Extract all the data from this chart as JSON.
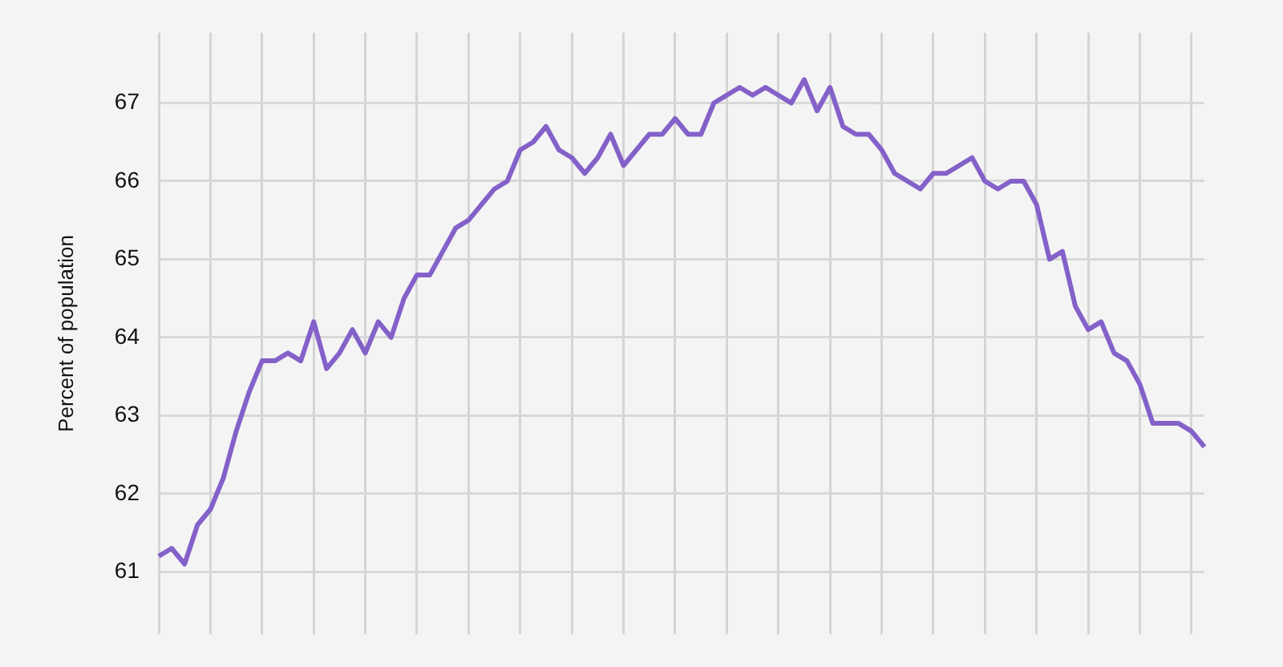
{
  "chart_data": {
    "type": "line",
    "ylabel": "Percent of population",
    "categories": [
      null,
      null,
      null,
      null,
      null,
      null,
      null,
      null,
      null,
      null,
      null,
      null,
      null,
      null,
      null,
      null,
      null,
      null,
      null,
      null,
      null,
      null,
      null,
      null,
      null,
      null,
      null,
      null,
      null,
      null,
      null,
      null,
      null,
      null,
      null,
      null,
      null,
      null,
      null,
      null,
      null,
      null,
      null,
      null,
      null,
      null,
      null,
      null,
      null,
      null,
      null,
      null,
      null,
      null,
      null,
      null,
      null,
      null,
      null,
      null,
      null,
      null,
      null,
      null,
      null,
      null,
      null,
      null,
      null,
      null,
      null,
      null,
      null,
      null,
      null,
      null,
      null,
      null,
      null,
      null,
      null,
      null
    ],
    "series": [
      {
        "color": "#8461c9",
        "values": [
          61.2,
          61.3,
          61.1,
          61.6,
          61.8,
          62.2,
          62.8,
          63.3,
          63.7,
          63.7,
          63.8,
          63.7,
          64.2,
          63.6,
          63.8,
          64.1,
          63.8,
          64.2,
          64.0,
          64.5,
          64.8,
          64.8,
          65.1,
          65.4,
          65.5,
          65.7,
          65.9,
          66.0,
          66.4,
          66.5,
          66.7,
          66.4,
          66.3,
          66.1,
          66.3,
          66.6,
          66.2,
          66.4,
          66.6,
          66.6,
          66.8,
          66.6,
          66.6,
          67.0,
          67.1,
          67.2,
          67.1,
          67.2,
          67.1,
          67.0,
          67.3,
          66.9,
          67.2,
          66.7,
          66.6,
          66.6,
          66.4,
          66.1,
          66.0,
          65.9,
          66.1,
          66.1,
          66.2,
          66.3,
          66.0,
          65.9,
          66.0,
          66.0,
          65.7,
          65.0,
          65.1,
          64.4,
          64.1,
          64.2,
          63.8,
          63.7,
          63.4,
          62.9,
          62.9,
          62.9,
          62.8,
          62.6
        ]
      }
    ],
    "ylim": [
      60.2,
      67.9
    ],
    "yticks": [
      61,
      62,
      63,
      64,
      65,
      66,
      67
    ],
    "grid": true,
    "tick_labels": "y",
    "legend": false,
    "marker": "none",
    "line_style": "solid"
  }
}
